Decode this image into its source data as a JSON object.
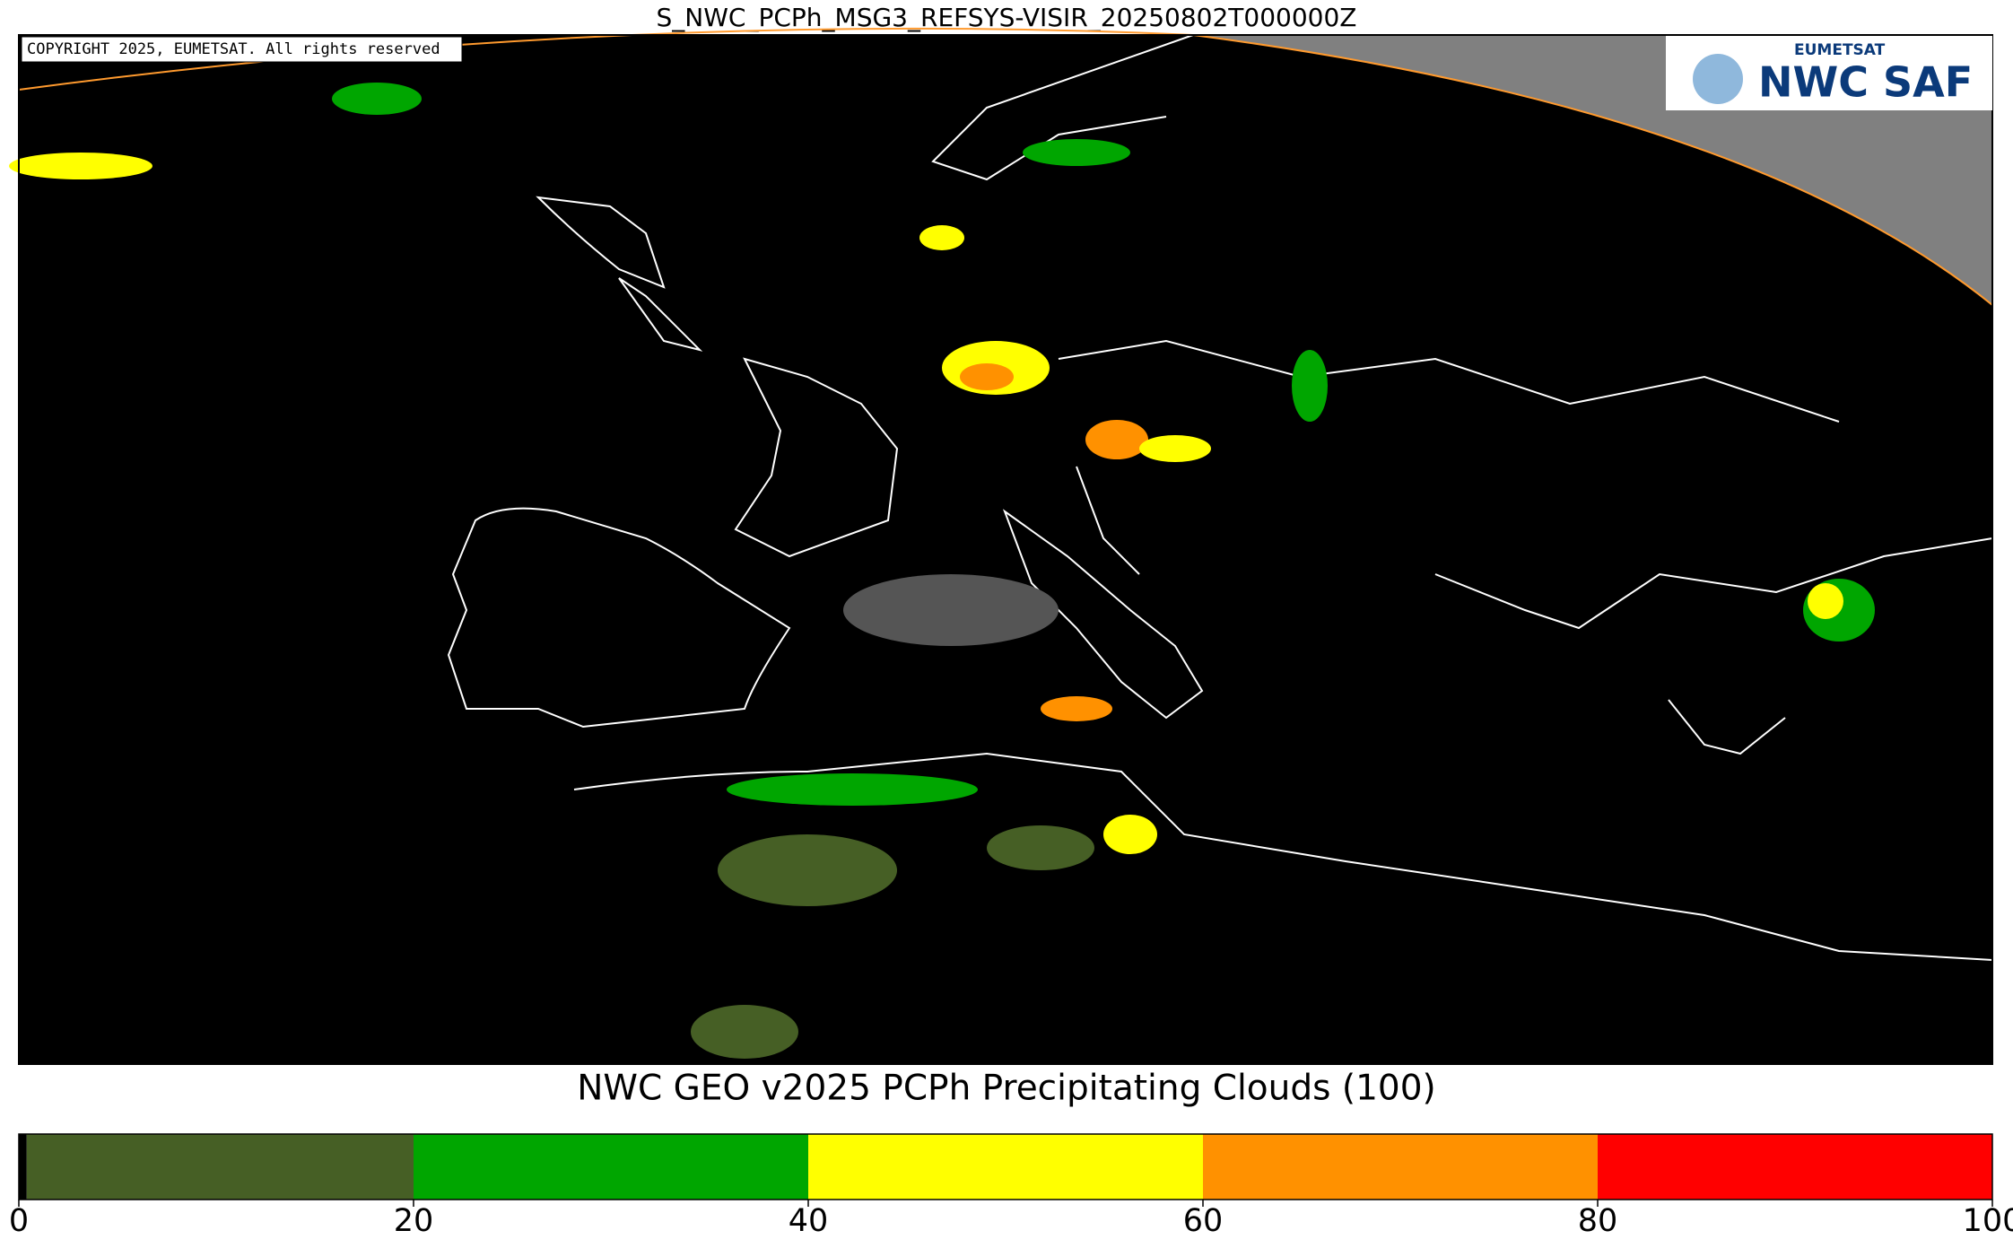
{
  "title": "S_NWC_PCPh_MSG3_REFSYS-VISIR_20250802T000000Z",
  "copyright": "COPYRIGHT 2025, EUMETSAT. All rights reserved",
  "logo": {
    "top": "EUMETSAT",
    "main": "NWC SAF"
  },
  "colorbar": {
    "label": "NWC GEO v2025 PCPh Precipitating Clouds (100)",
    "lim": [
      0,
      100
    ],
    "ticks": [
      0,
      20,
      40,
      60,
      80,
      100
    ],
    "segments": [
      {
        "from": 0,
        "to": 0.4,
        "color": "#000000"
      },
      {
        "from": 0.4,
        "to": 20,
        "color": "#465f25"
      },
      {
        "from": 20,
        "to": 40,
        "color": "#00a600"
      },
      {
        "from": 40,
        "to": 60,
        "color": "#ffff00"
      },
      {
        "from": 60,
        "to": 80,
        "color": "#ff9100"
      },
      {
        "from": 80,
        "to": 100,
        "color": "#ff0000"
      }
    ]
  }
}
